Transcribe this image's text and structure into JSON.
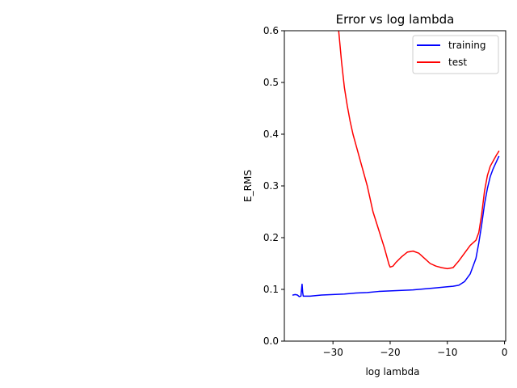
{
  "chart_data": {
    "type": "line",
    "title": "Error vs log lambda",
    "xlabel": "log lambda",
    "ylabel": "E_RMS",
    "xlim": [
      -38.5,
      0.2
    ],
    "ylim": [
      0.0,
      0.6
    ],
    "xticks": [
      -30,
      -20,
      -10,
      0
    ],
    "xtick_labels": [
      "−30",
      "−20",
      "−10",
      "0"
    ],
    "yticks": [
      0.0,
      0.1,
      0.2,
      0.3,
      0.4,
      0.5,
      0.6
    ],
    "ytick_labels": [
      "0.0",
      "0.1",
      "0.2",
      "0.3",
      "0.4",
      "0.5",
      "0.6"
    ],
    "grid": false,
    "legend_position": "top-right",
    "series": [
      {
        "name": "training",
        "color": "#0000ff",
        "x": [
          -37.0,
          -36.6,
          -36.2,
          -35.9,
          -35.6,
          -35.45,
          -35.4,
          -35.3,
          -35.2,
          -35.0,
          -34.0,
          -32.0,
          -30.0,
          -28.0,
          -26.0,
          -24.0,
          -22.0,
          -20.0,
          -18.0,
          -16.0,
          -14.0,
          -12.0,
          -10.0,
          -9.0,
          -8.0,
          -7.0,
          -6.0,
          -5.0,
          -4.5,
          -4.0,
          -3.5,
          -3.0,
          -2.5,
          -2.0,
          -1.5,
          -1.0
        ],
        "y": [
          0.089,
          0.09,
          0.089,
          0.086,
          0.087,
          0.105,
          0.11,
          0.095,
          0.087,
          0.087,
          0.087,
          0.089,
          0.09,
          0.091,
          0.093,
          0.094,
          0.096,
          0.097,
          0.098,
          0.099,
          0.101,
          0.103,
          0.105,
          0.106,
          0.108,
          0.115,
          0.13,
          0.16,
          0.19,
          0.225,
          0.265,
          0.295,
          0.318,
          0.333,
          0.345,
          0.357
        ]
      },
      {
        "name": "test",
        "color": "#ff0000",
        "x": [
          -29.5,
          -29.0,
          -28.5,
          -28.0,
          -27.5,
          -27.0,
          -26.5,
          -26.0,
          -25.0,
          -24.0,
          -23.0,
          -22.0,
          -21.0,
          -20.5,
          -20.2,
          -20.0,
          -19.5,
          -19.0,
          -18.0,
          -17.0,
          -16.0,
          -15.0,
          -14.0,
          -13.0,
          -12.0,
          -11.0,
          -10.0,
          -9.0,
          -8.0,
          -7.0,
          -6.0,
          -5.0,
          -4.5,
          -4.0,
          -3.5,
          -3.0,
          -2.5,
          -2.0,
          -1.5,
          -1.0
        ],
        "y": [
          0.65,
          0.6,
          0.54,
          0.49,
          0.455,
          0.425,
          0.4,
          0.38,
          0.34,
          0.3,
          0.25,
          0.215,
          0.18,
          0.16,
          0.148,
          0.143,
          0.145,
          0.152,
          0.163,
          0.172,
          0.174,
          0.17,
          0.16,
          0.15,
          0.145,
          0.142,
          0.14,
          0.142,
          0.155,
          0.17,
          0.185,
          0.195,
          0.21,
          0.245,
          0.29,
          0.32,
          0.338,
          0.348,
          0.358,
          0.367
        ]
      }
    ]
  }
}
